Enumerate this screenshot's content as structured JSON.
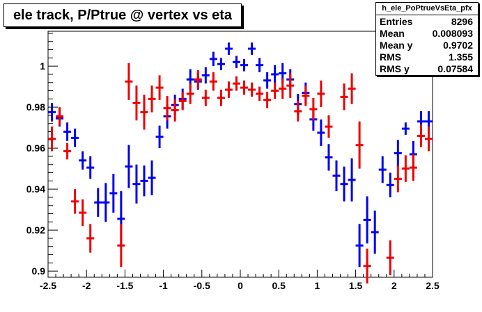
{
  "title": "ele track, P/Ptrue @ vertex vs eta",
  "stats": {
    "name": "h_ele_PoPtrueVsEta_pfx",
    "rows": [
      {
        "label": "Entries",
        "value": "8296"
      },
      {
        "label": "Mean",
        "value": "0.008093"
      },
      {
        "label": "Mean y",
        "value": "0.9702"
      },
      {
        "label": "RMS",
        "value": "1.355"
      },
      {
        "label": "RMS y",
        "value": "0.07584"
      }
    ]
  },
  "chart_data": {
    "type": "scatter",
    "title": "ele track, P/Ptrue @ vertex vs eta",
    "xlabel": "",
    "ylabel": "",
    "xlim": [
      -2.5,
      2.5
    ],
    "ylim": [
      0.897,
      1.017
    ],
    "x_ticks": [
      -2.5,
      -2,
      -1.5,
      -1,
      -0.5,
      0,
      0.5,
      1,
      1.5,
      2,
      2.5
    ],
    "x_tick_labels": [
      "-2.5",
      "-2",
      "-1.5",
      "-1",
      "-0.5",
      "0",
      "0.5",
      "1",
      "1.5",
      "2",
      "2.5"
    ],
    "y_ticks": [
      0.9,
      0.92,
      0.94,
      0.96,
      0.98,
      1
    ],
    "y_tick_labels": [
      "0.9",
      "0.92",
      "0.94",
      "0.96",
      "0.98",
      "1"
    ],
    "grid": false,
    "x_bin_half_width": 0.05,
    "series": [
      {
        "color": "#0000ee",
        "points": [
          {
            "x": -2.45,
            "y": 0.9775,
            "err": 0.0045
          },
          {
            "x": -2.35,
            "y": 0.9745,
            "err": 0.004
          },
          {
            "x": -2.25,
            "y": 0.968,
            "err": 0.0045
          },
          {
            "x": -2.15,
            "y": 0.965,
            "err": 0.0045
          },
          {
            "x": -2.05,
            "y": 0.954,
            "err": 0.0045
          },
          {
            "x": -1.95,
            "y": 0.9505,
            "err": 0.0055
          },
          {
            "x": -1.85,
            "y": 0.9335,
            "err": 0.007
          },
          {
            "x": -1.75,
            "y": 0.9335,
            "err": 0.0095
          },
          {
            "x": -1.65,
            "y": 0.938,
            "err": 0.0095
          },
          {
            "x": -1.55,
            "y": 0.9255,
            "err": 0.0135
          },
          {
            "x": -1.45,
            "y": 0.951,
            "err": 0.0105
          },
          {
            "x": -1.35,
            "y": 0.9425,
            "err": 0.0095
          },
          {
            "x": -1.25,
            "y": 0.944,
            "err": 0.0075
          },
          {
            "x": -1.15,
            "y": 0.9455,
            "err": 0.0085
          },
          {
            "x": -1.05,
            "y": 0.9655,
            "err": 0.0055
          },
          {
            "x": -0.95,
            "y": 0.9755,
            "err": 0.006
          },
          {
            "x": -0.85,
            "y": 0.981,
            "err": 0.005
          },
          {
            "x": -0.75,
            "y": 0.984,
            "err": 0.005
          },
          {
            "x": -0.65,
            "y": 0.9935,
            "err": 0.005
          },
          {
            "x": -0.55,
            "y": 0.9925,
            "err": 0.004
          },
          {
            "x": -0.45,
            "y": 0.9955,
            "err": 0.004
          },
          {
            "x": -0.35,
            "y": 1.0035,
            "err": 0.0035
          },
          {
            "x": -0.25,
            "y": 1.001,
            "err": 0.003
          },
          {
            "x": -0.15,
            "y": 1.0085,
            "err": 0.003
          },
          {
            "x": -0.05,
            "y": 1.002,
            "err": 0.003
          },
          {
            "x": 0.05,
            "y": 1.0005,
            "err": 0.003
          },
          {
            "x": 0.15,
            "y": 1.0085,
            "err": 0.003
          },
          {
            "x": 0.25,
            "y": 1.0005,
            "err": 0.0035
          },
          {
            "x": 0.35,
            "y": 0.993,
            "err": 0.004
          },
          {
            "x": 0.45,
            "y": 0.996,
            "err": 0.0045
          },
          {
            "x": 0.55,
            "y": 0.9965,
            "err": 0.005
          },
          {
            "x": 0.65,
            "y": 0.9935,
            "err": 0.005
          },
          {
            "x": 0.75,
            "y": 0.9815,
            "err": 0.005
          },
          {
            "x": 0.85,
            "y": 0.987,
            "err": 0.005
          },
          {
            "x": 0.95,
            "y": 0.974,
            "err": 0.0055
          },
          {
            "x": 1.05,
            "y": 0.9675,
            "err": 0.0065
          },
          {
            "x": 1.15,
            "y": 0.9555,
            "err": 0.0065
          },
          {
            "x": 1.25,
            "y": 0.9465,
            "err": 0.0075
          },
          {
            "x": 1.35,
            "y": 0.9425,
            "err": 0.0085
          },
          {
            "x": 1.45,
            "y": 0.9445,
            "err": 0.0105
          },
          {
            "x": 1.55,
            "y": 0.9125,
            "err": 0.0105
          },
          {
            "x": 1.65,
            "y": 0.925,
            "err": 0.0115
          },
          {
            "x": 1.75,
            "y": 0.919,
            "err": 0.0105
          },
          {
            "x": 1.85,
            "y": 0.9495,
            "err": 0.0065
          },
          {
            "x": 1.95,
            "y": 0.942,
            "err": 0.006
          },
          {
            "x": 2.05,
            "y": 0.9575,
            "err": 0.0065
          },
          {
            "x": 2.15,
            "y": 0.9695,
            "err": 0.003
          },
          {
            "x": 2.25,
            "y": 0.957,
            "err": 0.0065
          },
          {
            "x": 2.35,
            "y": 0.973,
            "err": 0.005
          },
          {
            "x": 2.45,
            "y": 0.973,
            "err": 0.005
          }
        ]
      },
      {
        "color": "#ee0000",
        "points": [
          {
            "x": -2.45,
            "y": 0.9645,
            "err": 0.006
          },
          {
            "x": -2.35,
            "y": 0.9755,
            "err": 0.0045
          },
          {
            "x": -2.25,
            "y": 0.9585,
            "err": 0.004
          },
          {
            "x": -2.15,
            "y": 0.934,
            "err": 0.006
          },
          {
            "x": -2.05,
            "y": 0.9285,
            "err": 0.0065
          },
          {
            "x": -1.95,
            "y": 0.916,
            "err": 0.007
          },
          {
            "x": -1.55,
            "y": 0.9125,
            "err": 0.0105
          },
          {
            "x": -1.45,
            "y": 0.9925,
            "err": 0.009
          },
          {
            "x": -1.35,
            "y": 0.982,
            "err": 0.0085
          },
          {
            "x": -1.25,
            "y": 0.9775,
            "err": 0.0085
          },
          {
            "x": -1.15,
            "y": 0.984,
            "err": 0.0065
          },
          {
            "x": -1.05,
            "y": 0.9895,
            "err": 0.006
          },
          {
            "x": -0.95,
            "y": 0.9795,
            "err": 0.006
          },
          {
            "x": -0.85,
            "y": 0.9785,
            "err": 0.0055
          },
          {
            "x": -0.75,
            "y": 0.983,
            "err": 0.0045
          },
          {
            "x": -0.65,
            "y": 0.9865,
            "err": 0.005
          },
          {
            "x": -0.55,
            "y": 0.9935,
            "err": 0.0045
          },
          {
            "x": -0.45,
            "y": 0.9845,
            "err": 0.004
          },
          {
            "x": -0.35,
            "y": 0.9925,
            "err": 0.0045
          },
          {
            "x": -0.25,
            "y": 0.9845,
            "err": 0.004
          },
          {
            "x": -0.15,
            "y": 0.9885,
            "err": 0.004
          },
          {
            "x": -0.05,
            "y": 0.9915,
            "err": 0.0035
          },
          {
            "x": 0.05,
            "y": 0.9895,
            "err": 0.0035
          },
          {
            "x": 0.15,
            "y": 0.9885,
            "err": 0.0035
          },
          {
            "x": 0.25,
            "y": 0.9865,
            "err": 0.0035
          },
          {
            "x": 0.35,
            "y": 0.9835,
            "err": 0.004
          },
          {
            "x": 0.45,
            "y": 0.988,
            "err": 0.004
          },
          {
            "x": 0.55,
            "y": 0.989,
            "err": 0.005
          },
          {
            "x": 0.65,
            "y": 0.9905,
            "err": 0.006
          },
          {
            "x": 0.75,
            "y": 0.978,
            "err": 0.005
          },
          {
            "x": 0.85,
            "y": 0.9855,
            "err": 0.005
          },
          {
            "x": 0.95,
            "y": 0.979,
            "err": 0.0055
          },
          {
            "x": 1.05,
            "y": 0.9865,
            "err": 0.0065
          },
          {
            "x": 1.15,
            "y": 0.9705,
            "err": 0.0055
          },
          {
            "x": 1.35,
            "y": 0.985,
            "err": 0.0065
          },
          {
            "x": 1.45,
            "y": 0.989,
            "err": 0.0075
          },
          {
            "x": 1.55,
            "y": 0.9615,
            "err": 0.0115
          },
          {
            "x": 1.65,
            "y": 0.9025,
            "err": 0.0085
          },
          {
            "x": 1.95,
            "y": 0.9065,
            "err": 0.0085
          },
          {
            "x": 2.05,
            "y": 0.945,
            "err": 0.0065
          },
          {
            "x": 2.15,
            "y": 0.95,
            "err": 0.0065
          },
          {
            "x": 2.25,
            "y": 0.9505,
            "err": 0.0065
          },
          {
            "x": 2.35,
            "y": 0.966,
            "err": 0.0055
          },
          {
            "x": 2.45,
            "y": 0.9645,
            "err": 0.006
          }
        ]
      }
    ]
  }
}
